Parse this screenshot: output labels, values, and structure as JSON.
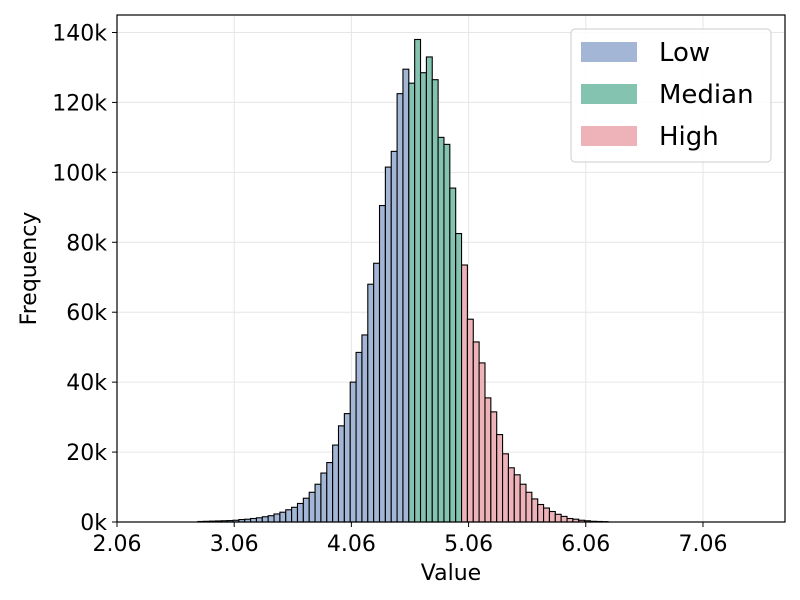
{
  "chart_data": {
    "type": "histogram",
    "xlabel": "Value",
    "ylabel": "Frequency",
    "xlim": [
      2.06,
      7.76
    ],
    "ylim": [
      0,
      145000
    ],
    "grid": true,
    "legend_position": "top-right",
    "x_ticks": [
      2.06,
      3.06,
      4.06,
      5.06,
      6.06,
      7.06
    ],
    "x_tick_labels": [
      "2.06",
      "3.06",
      "4.06",
      "5.06",
      "6.06",
      "7.06"
    ],
    "y_ticks": [
      0,
      20000,
      40000,
      60000,
      80000,
      100000,
      120000,
      140000
    ],
    "y_tick_labels": [
      "0k",
      "20k",
      "40k",
      "60k",
      "80k",
      "100k",
      "120k",
      "140k"
    ],
    "bin_width": 0.05,
    "bins_start": 2.75,
    "counts": [
      150,
      200,
      250,
      300,
      350,
      400,
      500,
      700,
      800,
      1000,
      1200,
      1500,
      1800,
      2300,
      2800,
      3500,
      4200,
      5300,
      6800,
      8500,
      10800,
      14000,
      17000,
      22000,
      27500,
      31000,
      40000,
      48500,
      53500,
      68000,
      74000,
      90500,
      101500,
      106000,
      122500,
      129500,
      125500,
      138000,
      128500,
      133000,
      126500,
      110000,
      108000,
      95500,
      82500,
      73500,
      58000,
      51500,
      45500,
      35500,
      31500,
      25000,
      19500,
      15500,
      13500,
      10800,
      8500,
      6600,
      5000,
      4000,
      3000,
      2200,
      1600,
      1000,
      800,
      500,
      350,
      200,
      150,
      100
    ],
    "series": [
      {
        "name": "Low",
        "color": "#a3b6d5",
        "from_bin": 0,
        "to_bin": 35
      },
      {
        "name": "Median",
        "color": "#84c3b0",
        "from_bin": 36,
        "to_bin": 44
      },
      {
        "name": "High",
        "color": "#eeb3b9",
        "from_bin": 45,
        "to_bin": 69
      }
    ],
    "colors": {
      "edge": "#000000",
      "grid": "#e6e6e6",
      "axes": "#000000"
    }
  }
}
